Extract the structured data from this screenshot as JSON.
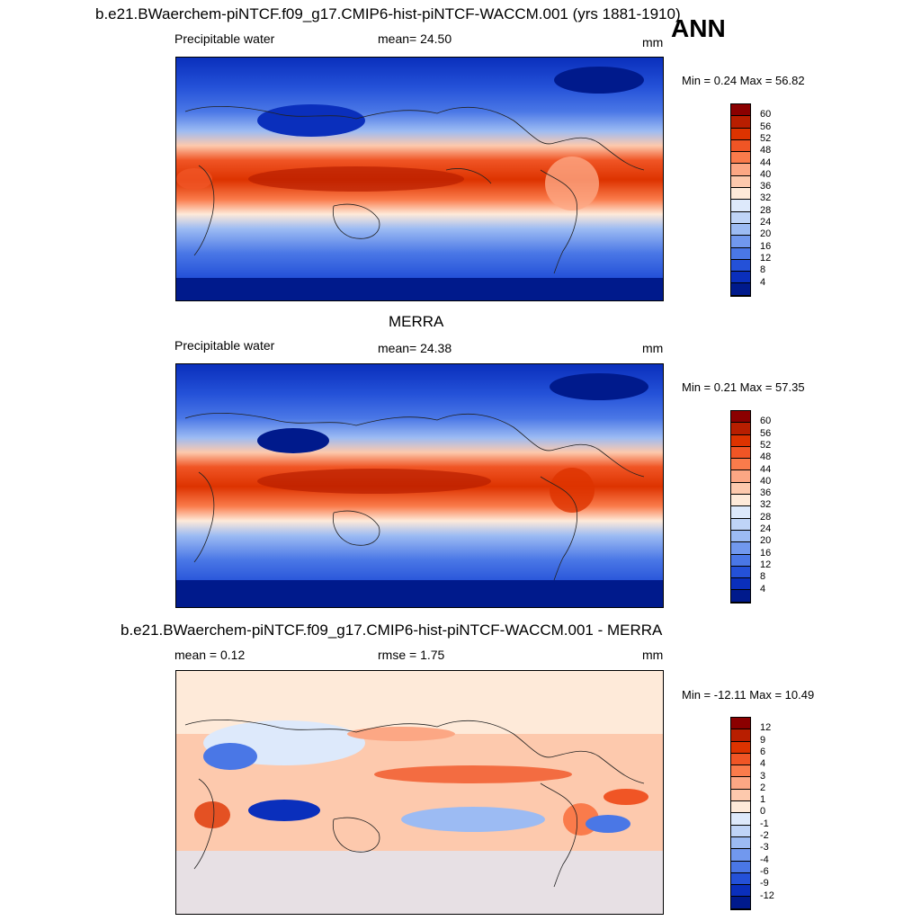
{
  "header": {
    "main_title": "b.e21.BWaerchem-piNTCF.f09_g17.CMIP6-hist-piNTCF-WACCM.001 (yrs 1881-1910)",
    "season": "ANN"
  },
  "panels": [
    {
      "title": "",
      "variable": "Precipitable water",
      "stat_left": "mean=  24.50",
      "stat_mid": "",
      "units": "mm",
      "minmax": "Min =   0.24 Max =  56.82",
      "type": "abs"
    },
    {
      "title": "MERRA",
      "variable": "Precipitable water",
      "stat_left": "mean=  24.38",
      "stat_mid": "",
      "units": "mm",
      "minmax": "Min =   0.21 Max =  57.35",
      "type": "abs"
    },
    {
      "title": "b.e21.BWaerchem-piNTCF.f09_g17.CMIP6-hist-piNTCF-WACCM.001 - MERRA",
      "variable": "mean =   0.12",
      "stat_left": "rmse =   1.75",
      "stat_mid": "",
      "units": "mm",
      "minmax": "Min = -12.11 Max =  10.49",
      "type": "diff"
    }
  ],
  "colorbar_abs": {
    "labels": [
      "60",
      "56",
      "52",
      "48",
      "44",
      "40",
      "36",
      "32",
      "28",
      "24",
      "20",
      "16",
      "12",
      "8",
      "4"
    ],
    "colors": [
      "#8b0000",
      "#b81e00",
      "#dd3300",
      "#f05525",
      "#fa7b4b",
      "#fca784",
      "#fdc9ad",
      "#feead9",
      "#dde9fb",
      "#bfd4f7",
      "#9cbbf3",
      "#7198ee",
      "#4a77e6",
      "#2451d8",
      "#0a2fbc",
      "#001a8c"
    ]
  },
  "colorbar_diff": {
    "labels": [
      "12",
      "9",
      "6",
      "4",
      "3",
      "2",
      "1",
      "0",
      "-1",
      "-2",
      "-3",
      "-4",
      "-6",
      "-9",
      "-12"
    ],
    "colors": [
      "#8b0000",
      "#b81e00",
      "#dd3300",
      "#f05525",
      "#fa7b4b",
      "#fca784",
      "#fdc9ad",
      "#feead9",
      "#dde9fb",
      "#bfd4f7",
      "#9cbbf3",
      "#7198ee",
      "#4a77e6",
      "#2451d8",
      "#0a2fbc",
      "#001a8c"
    ]
  }
}
